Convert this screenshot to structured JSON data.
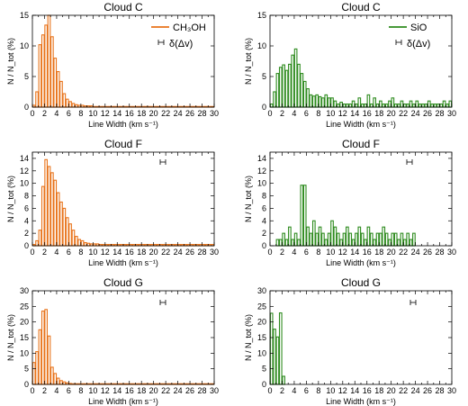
{
  "legend": {
    "ch3oh": "CH₃OH",
    "sio": "SiO",
    "resolution": "δ(Δv)",
    "resolution_symbol": "ʜ"
  },
  "colors": {
    "ch3oh": "#E8731A",
    "sio": "#2E8B1E"
  },
  "chart_data": [
    {
      "type": "bar",
      "panel": "Cloud C / CH3OH",
      "title": "Cloud C",
      "xlabel": "Line Width (km s⁻¹)",
      "ylabel": "N / N_tot (%)",
      "xlim": [
        0,
        30
      ],
      "ylim": [
        0,
        15
      ],
      "xticks": [
        0,
        2,
        4,
        6,
        8,
        10,
        12,
        14,
        16,
        18,
        20,
        22,
        24,
        26,
        28,
        30
      ],
      "yticks": [
        0,
        5,
        10,
        15
      ],
      "bin_width": 0.5,
      "series_color": "ch3oh",
      "values": [
        0.3,
        2.5,
        10.2,
        11.8,
        13.4,
        15.0,
        11.5,
        8.0,
        5.8,
        4.2,
        2.2,
        1.3,
        0.9,
        0.6,
        0.4,
        0.3,
        0.3,
        0.2,
        0.2,
        0.2,
        0.1,
        0.1,
        0.1,
        0.1,
        0.1,
        0.1,
        0.1,
        0.1,
        0.1,
        0.1,
        0.1,
        0.1,
        0.1,
        0.1,
        0.1,
        0.1,
        0.1,
        0.1,
        0.1,
        0.1,
        0.1,
        0.1,
        0.1,
        0.1,
        0.1,
        0.1,
        0.1,
        0.1,
        0.1,
        0.1,
        0.1,
        0.1,
        0.1,
        0.1,
        0.1,
        0.1,
        0.1,
        0.1,
        0.1,
        0.1
      ]
    },
    {
      "type": "bar",
      "panel": "Cloud C / SiO",
      "title": "Cloud C",
      "xlabel": "Line Width (km s⁻¹)",
      "ylabel": "N / N_tot (%)",
      "xlim": [
        0,
        30
      ],
      "ylim": [
        0,
        15
      ],
      "xticks": [
        0,
        2,
        4,
        6,
        8,
        10,
        12,
        14,
        16,
        18,
        20,
        22,
        24,
        26,
        28,
        30
      ],
      "yticks": [
        0,
        5,
        10,
        15
      ],
      "bin_width": 0.5,
      "series_color": "sio",
      "values": [
        0.5,
        2.5,
        5.5,
        6.5,
        6.9,
        6.0,
        7.0,
        8.5,
        9.5,
        7.0,
        5.5,
        4.2,
        3.0,
        2.0,
        1.8,
        2.0,
        1.7,
        1.5,
        2.0,
        1.5,
        1.5,
        1.0,
        0.5,
        0.8,
        0.5,
        0.5,
        0.5,
        1.0,
        0.5,
        1.5,
        0.5,
        0.5,
        2.0,
        0.5,
        1.5,
        0.5,
        1.0,
        0.5,
        0.5,
        1.0,
        1.5,
        0.5,
        0.5,
        1.0,
        0.5,
        0.5,
        1.0,
        0.5,
        1.0,
        0.5,
        0.5,
        0.5,
        1.0,
        0.5,
        0.5,
        0.5,
        0.5,
        1.0,
        0.5,
        1.0
      ]
    },
    {
      "type": "bar",
      "panel": "Cloud F / CH3OH",
      "title": "Cloud F",
      "xlabel": "Line Width (km s⁻¹)",
      "ylabel": "N / N_tot (%)",
      "xlim": [
        0,
        30
      ],
      "ylim": [
        0,
        15
      ],
      "xticks": [
        0,
        2,
        4,
        6,
        8,
        10,
        12,
        14,
        16,
        18,
        20,
        22,
        24,
        26,
        28,
        30
      ],
      "yticks": [
        0,
        2,
        4,
        6,
        8,
        10,
        12,
        14
      ],
      "bin_width": 0.5,
      "series_color": "ch3oh",
      "values": [
        0.2,
        0.8,
        2.5,
        9.5,
        13.8,
        12.7,
        11.7,
        10.5,
        8.5,
        7.0,
        6.0,
        4.5,
        3.5,
        2.5,
        1.5,
        1.0,
        0.8,
        0.5,
        0.4,
        0.3,
        0.3,
        0.3,
        0.2,
        0.2,
        0.2,
        0.2,
        0.2,
        0.2,
        0.2,
        0.2,
        0.2,
        0.2,
        0.2,
        0.2,
        0.2,
        0.2,
        0.2,
        0.2,
        0.2,
        0.2,
        0.2,
        0.2,
        0.2,
        0.2,
        0.2,
        0.2,
        0.2,
        0.2,
        0.2,
        0.2,
        0.2,
        0.2,
        0.2,
        0.2,
        0.2,
        0.2,
        0.2,
        0.2,
        0.2,
        0.2
      ]
    },
    {
      "type": "bar",
      "panel": "Cloud F / SiO",
      "title": "Cloud F",
      "xlabel": "Line Width (km s⁻¹)",
      "ylabel": "N / N_tot (%)",
      "xlim": [
        0,
        30
      ],
      "ylim": [
        0,
        15
      ],
      "xticks": [
        0,
        2,
        4,
        6,
        8,
        10,
        12,
        14,
        16,
        18,
        20,
        22,
        24,
        26,
        28,
        30
      ],
      "yticks": [
        0,
        2,
        4,
        6,
        8,
        10,
        12,
        14
      ],
      "bin_width": 0.5,
      "series_color": "sio",
      "values": [
        0,
        0,
        1,
        1,
        2,
        1,
        3,
        1,
        2,
        1,
        9.7,
        9.7,
        3,
        2,
        4,
        2,
        3,
        2,
        1,
        2,
        4,
        3,
        2,
        1,
        2,
        3,
        2,
        1,
        2,
        3,
        2,
        1,
        3,
        2,
        1,
        2,
        2,
        3,
        2,
        1,
        2,
        2,
        1,
        2,
        1,
        2,
        1,
        2,
        0,
        0,
        0,
        0,
        0,
        0,
        0,
        0,
        0,
        0,
        0,
        0
      ]
    },
    {
      "type": "bar",
      "panel": "Cloud G / CH3OH",
      "title": "Cloud G",
      "xlabel": "Line Width (km s⁻¹)",
      "ylabel": "N / N_tot (%)",
      "xlim": [
        0,
        30
      ],
      "ylim": [
        0,
        30
      ],
      "xticks": [
        0,
        2,
        4,
        6,
        8,
        10,
        12,
        14,
        16,
        18,
        20,
        22,
        24,
        26,
        28,
        30
      ],
      "yticks": [
        0,
        5,
        10,
        15,
        20,
        25,
        30
      ],
      "bin_width": 0.5,
      "series_color": "ch3oh",
      "values": [
        7.0,
        10.5,
        17.5,
        23.5,
        24.0,
        15.5,
        5.5,
        3.5,
        2.0,
        1.2,
        0.8,
        0.5,
        0.3,
        0.2,
        0.2,
        0.2,
        0.2,
        0.2,
        0.2,
        0.2,
        0.2,
        0.2,
        0.2,
        0.2,
        0.2,
        0.2,
        0.2,
        0.2,
        0.2,
        0.2,
        0.2,
        0.2,
        0.2,
        0.2,
        0.2,
        0.2,
        0.2,
        0.2,
        0.2,
        0.2,
        0.2,
        0.2,
        0.2,
        0.2,
        0.2,
        0.2,
        0.2,
        0.2,
        0.2,
        0.2,
        0.2,
        0.2,
        0.2,
        0.2,
        0.2,
        0.2,
        0.2,
        0.2,
        0.2,
        0.2
      ]
    },
    {
      "type": "bar",
      "panel": "Cloud G / SiO",
      "title": "Cloud G",
      "xlabel": "Line Width (km s⁻¹)",
      "ylabel": "N / N_tot (%)",
      "xlim": [
        0,
        30
      ],
      "ylim": [
        0,
        30
      ],
      "xticks": [
        0,
        2,
        4,
        6,
        8,
        10,
        12,
        14,
        16,
        18,
        20,
        22,
        24,
        26,
        28,
        30
      ],
      "yticks": [
        0,
        5,
        10,
        15,
        20,
        25,
        30
      ],
      "bin_width": 0.5,
      "series_color": "sio",
      "values": [
        22.8,
        17.7,
        15.2,
        22.9,
        2.6,
        0,
        0,
        0,
        0,
        0,
        0,
        0,
        0,
        0,
        0,
        0,
        0,
        0,
        0,
        0,
        0,
        0,
        0,
        0,
        0,
        0,
        0,
        0,
        0,
        0,
        0,
        0,
        0,
        0,
        0,
        0,
        0,
        0,
        0,
        0,
        0,
        0,
        0,
        0,
        0,
        0,
        0,
        0,
        0,
        0,
        0,
        0,
        0,
        0,
        0,
        0,
        0,
        0,
        0,
        0
      ]
    }
  ]
}
